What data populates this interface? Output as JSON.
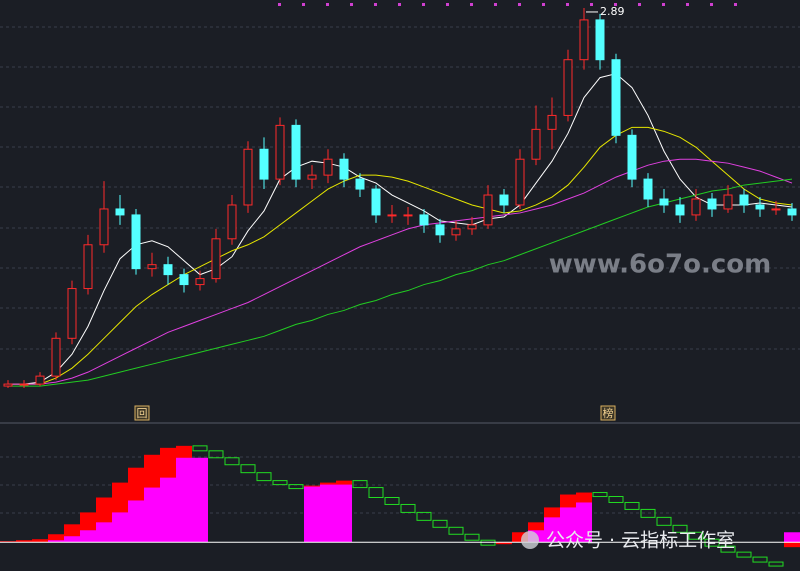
{
  "chart_data": [
    {
      "type": "candlestick",
      "ylim": [
        0.92,
        2.93
      ],
      "up_color": "#ff2a2a",
      "down_color": "#54ffff",
      "open": [
        0.99,
        1.0,
        1.0,
        1.04,
        1.23,
        1.48,
        1.7,
        1.88,
        1.85,
        1.58,
        1.6,
        1.55,
        1.5,
        1.53,
        1.73,
        1.9,
        2.18,
        2.03,
        2.3,
        2.03,
        2.05,
        2.13,
        2.03,
        1.98,
        1.85,
        1.85,
        1.85,
        1.8,
        1.75,
        1.78,
        1.8,
        1.95,
        1.9,
        2.13,
        2.28,
        2.35,
        2.63,
        2.83,
        2.63,
        2.25,
        2.03,
        1.93,
        1.9,
        1.85,
        1.93,
        1.88,
        1.95,
        1.9,
        1.88,
        1.88
      ],
      "high": [
        1.02,
        1.02,
        1.06,
        1.26,
        1.52,
        1.75,
        2.02,
        1.95,
        1.88,
        1.66,
        1.64,
        1.58,
        1.57,
        1.78,
        1.95,
        2.22,
        2.24,
        2.34,
        2.33,
        2.1,
        2.18,
        2.16,
        2.06,
        2.0,
        1.9,
        1.89,
        1.88,
        1.83,
        1.82,
        1.84,
        2.0,
        1.98,
        2.18,
        2.4,
        2.44,
        2.68,
        2.89,
        2.86,
        2.66,
        2.28,
        2.06,
        1.98,
        1.94,
        1.98,
        1.96,
        2.0,
        1.98,
        1.94,
        1.92,
        1.91
      ],
      "low": [
        0.98,
        0.98,
        0.99,
        1.02,
        1.2,
        1.45,
        1.66,
        1.8,
        1.55,
        1.54,
        1.5,
        1.46,
        1.47,
        1.51,
        1.7,
        1.86,
        1.98,
        2.0,
        1.99,
        1.98,
        2.01,
        1.99,
        1.94,
        1.81,
        1.81,
        1.8,
        1.76,
        1.71,
        1.72,
        1.75,
        1.78,
        1.86,
        1.88,
        2.1,
        2.18,
        2.32,
        2.58,
        2.58,
        2.21,
        1.99,
        1.89,
        1.86,
        1.81,
        1.82,
        1.84,
        1.86,
        1.86,
        1.84,
        1.85,
        1.82
      ],
      "close": [
        1.0,
        1.0,
        1.04,
        1.23,
        1.48,
        1.7,
        1.88,
        1.85,
        1.58,
        1.6,
        1.55,
        1.5,
        1.53,
        1.73,
        1.9,
        2.18,
        2.03,
        2.3,
        2.03,
        2.05,
        2.13,
        2.03,
        1.98,
        1.85,
        1.85,
        1.85,
        1.8,
        1.75,
        1.78,
        1.8,
        1.95,
        1.9,
        2.13,
        2.28,
        2.35,
        2.63,
        2.83,
        2.63,
        2.25,
        2.03,
        1.93,
        1.9,
        1.85,
        1.93,
        1.88,
        1.95,
        1.9,
        1.88,
        1.88,
        1.85
      ],
      "lines": [
        {
          "color": "#ffffff",
          "values": [
            1.0,
            1.0,
            1.01,
            1.06,
            1.15,
            1.29,
            1.47,
            1.63,
            1.7,
            1.72,
            1.69,
            1.62,
            1.55,
            1.58,
            1.64,
            1.77,
            1.87,
            2.03,
            2.09,
            2.12,
            2.11,
            2.09,
            2.04,
            2.01,
            1.95,
            1.91,
            1.87,
            1.82,
            1.81,
            1.8,
            1.83,
            1.84,
            1.9,
            2.01,
            2.12,
            2.26,
            2.44,
            2.54,
            2.56,
            2.49,
            2.35,
            2.17,
            2.03,
            1.94,
            1.9,
            1.9,
            1.9,
            1.91,
            1.9,
            1.89
          ]
        },
        {
          "color": "#e6e600",
          "values": [
            1.0,
            1.0,
            1.0,
            1.03,
            1.08,
            1.15,
            1.23,
            1.31,
            1.39,
            1.45,
            1.5,
            1.55,
            1.59,
            1.63,
            1.67,
            1.7,
            1.74,
            1.8,
            1.86,
            1.92,
            1.98,
            2.02,
            2.05,
            2.05,
            2.04,
            2.02,
            1.99,
            1.96,
            1.93,
            1.9,
            1.88,
            1.86,
            1.87,
            1.9,
            1.94,
            2.0,
            2.09,
            2.19,
            2.25,
            2.29,
            2.29,
            2.27,
            2.24,
            2.19,
            2.12,
            2.05,
            1.98,
            1.93,
            1.91,
            1.9
          ]
        },
        {
          "color": "#e040e0",
          "values": [
            1.0,
            1.0,
            1.0,
            1.01,
            1.03,
            1.06,
            1.1,
            1.14,
            1.18,
            1.22,
            1.26,
            1.29,
            1.32,
            1.35,
            1.38,
            1.41,
            1.45,
            1.49,
            1.53,
            1.57,
            1.61,
            1.65,
            1.69,
            1.72,
            1.75,
            1.78,
            1.8,
            1.81,
            1.82,
            1.83,
            1.84,
            1.85,
            1.86,
            1.88,
            1.9,
            1.93,
            1.96,
            2.0,
            2.04,
            2.07,
            2.1,
            2.12,
            2.13,
            2.13,
            2.12,
            2.11,
            2.09,
            2.07,
            2.04,
            2.01
          ]
        },
        {
          "color": "#22cc22",
          "values": [
            0.99,
            0.99,
            0.99,
            1.0,
            1.01,
            1.02,
            1.04,
            1.06,
            1.08,
            1.1,
            1.12,
            1.14,
            1.16,
            1.18,
            1.2,
            1.22,
            1.24,
            1.27,
            1.3,
            1.32,
            1.35,
            1.37,
            1.4,
            1.42,
            1.45,
            1.47,
            1.5,
            1.52,
            1.55,
            1.57,
            1.6,
            1.62,
            1.65,
            1.68,
            1.71,
            1.74,
            1.77,
            1.8,
            1.83,
            1.86,
            1.89,
            1.91,
            1.93,
            1.95,
            1.97,
            1.98,
            2.0,
            2.01,
            2.02,
            2.03
          ]
        }
      ],
      "annotations": [
        "回",
        "榜"
      ],
      "watermark": "www.6o7o.com"
    },
    {
      "type": "step-bar",
      "ylim": [
        -29,
        118
      ],
      "decline_color": "#22dd22",
      "series": [
        {
          "color": "#ff0000",
          "values": [
            1,
            2,
            3,
            8,
            18,
            30,
            45,
            60,
            75,
            88,
            95,
            97,
            92,
            85,
            78,
            70,
            62,
            58,
            55,
            57,
            60,
            62,
            55,
            45,
            38,
            30,
            22,
            15,
            8,
            2,
            -3,
            -2,
            10,
            20,
            35,
            48,
            50,
            46,
            40,
            33,
            25,
            17,
            10,
            3,
            -4,
            -10,
            -15,
            -20,
            -22,
            -5
          ]
        },
        {
          "color": "#ff00ff",
          "values": [
            0,
            0,
            0,
            2,
            6,
            12,
            20,
            30,
            42,
            55,
            65,
            85,
            85,
            0,
            0,
            0,
            0,
            0,
            0,
            56,
            58,
            58,
            0,
            0,
            0,
            0,
            0,
            0,
            0,
            0,
            0,
            0,
            0,
            12,
            25,
            35,
            40,
            0,
            0,
            0,
            0,
            0,
            0,
            0,
            0,
            0,
            0,
            0,
            0,
            10
          ]
        }
      ],
      "footer": "公众号 · 云指标工作室"
    }
  ]
}
